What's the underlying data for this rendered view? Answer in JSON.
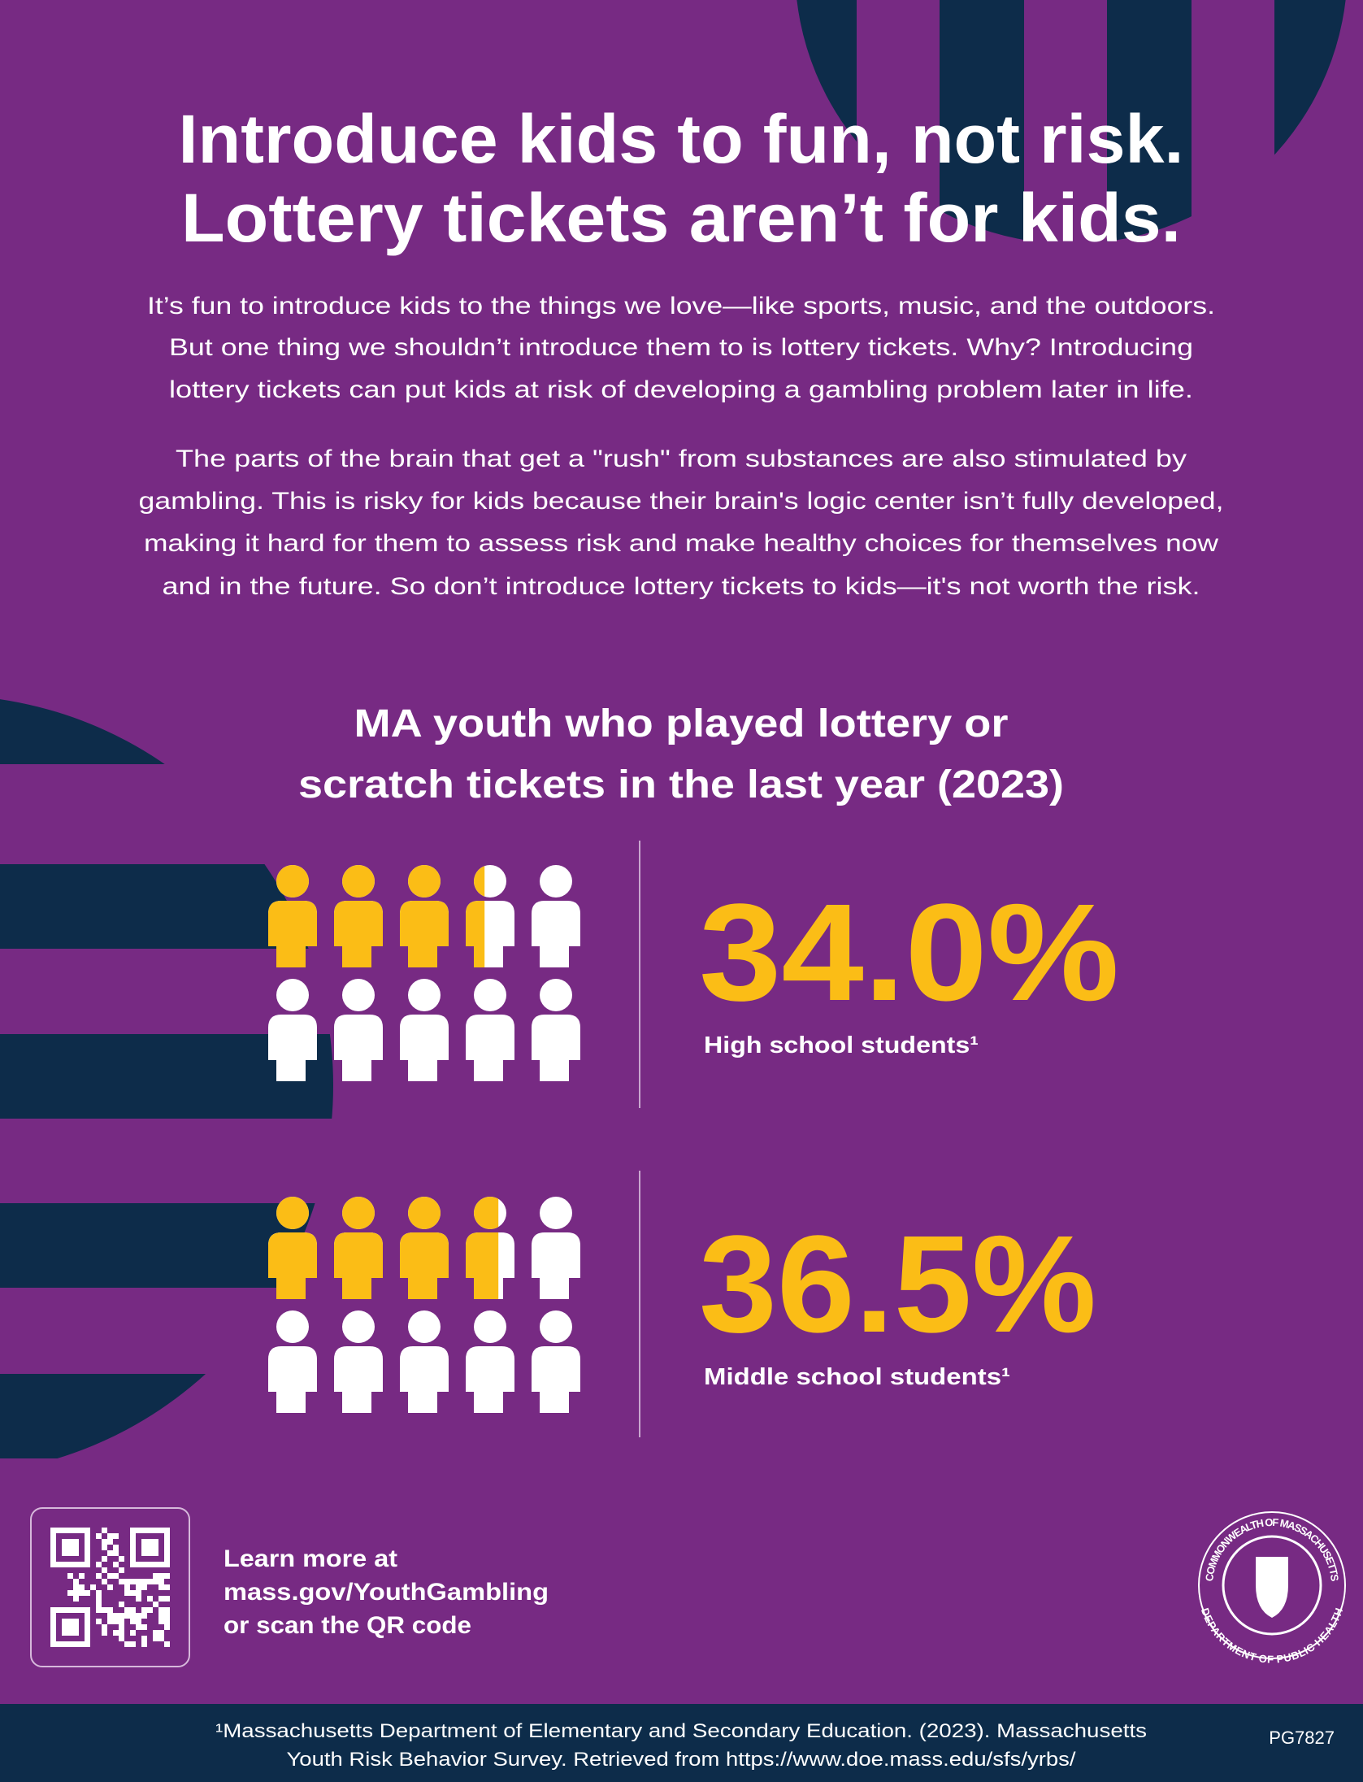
{
  "headline": [
    "Introduce kids to fun, not risk.",
    "Lottery tickets aren’t for kids."
  ],
  "intro": [
    [
      "It’s fun to introduce kids to the things we love—like sports, music, and the outdoors.",
      "But one thing we shouldn’t introduce them to is lottery tickets. Why? Introducing",
      "lottery tickets can put kids at risk of developing a gambling problem later in life."
    ],
    [
      "The parts of the brain that get a \"rush\" from substances are also stimulated by",
      "gambling. This is risky for kids because their brain's logic center isn’t fully developed,",
      "making it hard for them to assess risk and make healthy choices for themselves now",
      "and in the future.  So don’t introduce lottery tickets to kids—it's not worth the risk."
    ]
  ],
  "stats_title": [
    "MA youth who played lottery or",
    "scratch tickets in the last year (2023)"
  ],
  "stats": [
    {
      "value": 34.0,
      "value_label": "34.0%",
      "label": "High school students¹"
    },
    {
      "value": 36.5,
      "value_label": "36.5%",
      "label": "Middle school students¹"
    }
  ],
  "cta": [
    "Learn more at",
    "mass.gov/YouthGambling",
    "or scan the QR code"
  ],
  "seal": {
    "top": "COMMONWEALTH OF MASSACHUSETTS",
    "bottom": "DEPARTMENT OF PUBLIC HEALTH"
  },
  "footer": {
    "source": [
      "¹Massachusetts Department of Elementary and Secondary Education. (2023). Massachusetts",
      "Youth Risk Behavior Survey. Retrieved from https://www.doe.mass.edu/sfs/yrbs/"
    ],
    "code": "PG7827"
  }
}
